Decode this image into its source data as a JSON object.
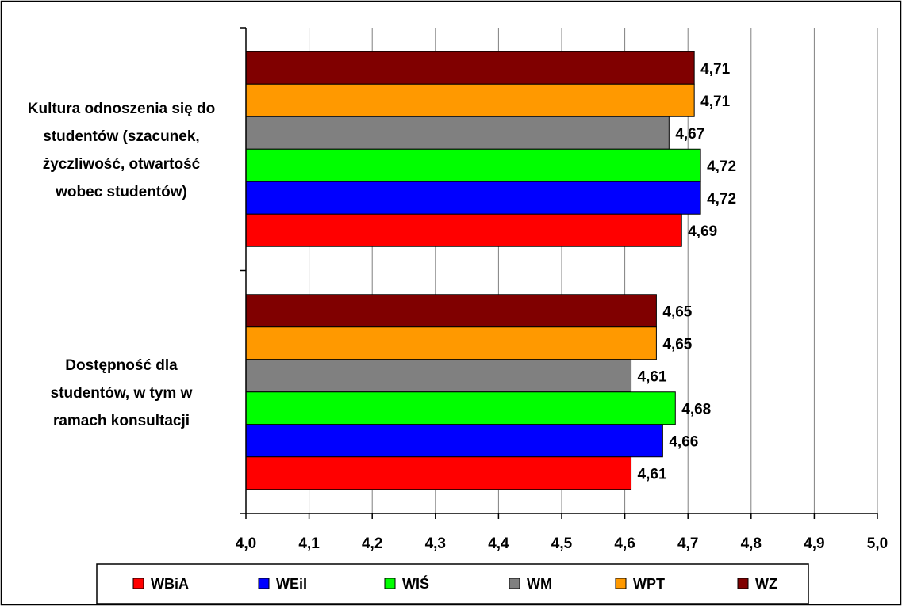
{
  "chart_data": {
    "type": "bar",
    "orientation": "horizontal",
    "title": "",
    "xlabel": "",
    "ylabel": "",
    "xlim": [
      4.0,
      5.0
    ],
    "x_ticks": [
      "4,0",
      "4,1",
      "4,2",
      "4,3",
      "4,4",
      "4,5",
      "4,6",
      "4,7",
      "4,8",
      "4,9",
      "5,0"
    ],
    "x_tick_values": [
      4.0,
      4.1,
      4.2,
      4.3,
      4.4,
      4.5,
      4.6,
      4.7,
      4.8,
      4.9,
      5.0
    ],
    "grid": "vertical major gridlines",
    "legend_position": "bottom",
    "categories": [
      {
        "label_lines": [
          "Kultura odnoszenia się do",
          "studentów (szacunek,",
          "życzliwość, otwartość",
          "wobec studentów)"
        ]
      },
      {
        "label_lines": [
          "Dostępność dla",
          "studentów, w tym w",
          "ramach konsultacji"
        ]
      }
    ],
    "series": [
      {
        "name": "WBiA",
        "color": "#ff0000",
        "values": [
          4.69,
          4.61
        ],
        "labels": [
          "4,69",
          "4,61"
        ]
      },
      {
        "name": "WEiI",
        "color": "#0000ff",
        "values": [
          4.72,
          4.66
        ],
        "labels": [
          "4,72",
          "4,66"
        ]
      },
      {
        "name": "WIŚ",
        "color": "#00ff00",
        "values": [
          4.72,
          4.68
        ],
        "labels": [
          "4,72",
          "4,68"
        ]
      },
      {
        "name": "WM",
        "color": "#808080",
        "values": [
          4.67,
          4.61
        ],
        "labels": [
          "4,67",
          "4,61"
        ]
      },
      {
        "name": "WPT",
        "color": "#ff9900",
        "values": [
          4.71,
          4.65
        ],
        "labels": [
          "4,71",
          "4,65"
        ]
      },
      {
        "name": "WZ",
        "color": "#800000",
        "values": [
          4.71,
          4.65
        ],
        "labels": [
          "4,71",
          "4,65"
        ]
      }
    ]
  }
}
